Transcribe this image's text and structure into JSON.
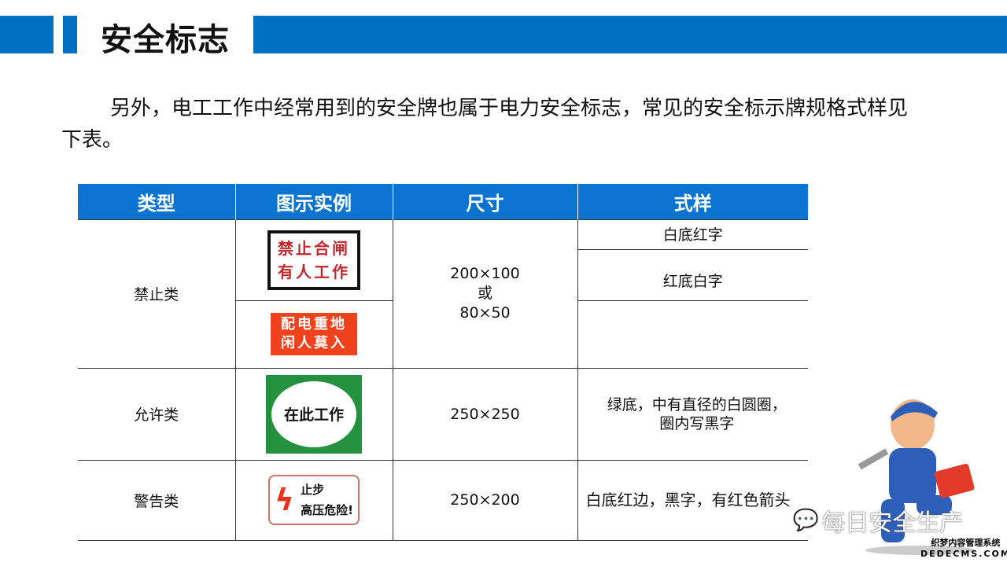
{
  "header": {
    "title": "安全标志"
  },
  "intro": "另外，电工工作中经常用到的安全牌也属于电力安全标志，常见的安全标示牌规格式样见下表。",
  "table": {
    "headers": [
      "类型",
      "图示实例",
      "尺寸",
      "式样"
    ],
    "rows": [
      {
        "type": "禁止类",
        "size_lines": [
          "200×100",
          "或",
          "80×50"
        ],
        "signs": [
          {
            "lines": [
              "禁止合闸",
              "有人工作"
            ],
            "style": "白底红字"
          },
          {
            "lines": [
              "配电重地",
              "闲人莫入"
            ],
            "style": "红底白字"
          }
        ]
      },
      {
        "type": "允许类",
        "size": "250×250",
        "sign": "在此工作",
        "style": "绿底，中有直径的白圆圈，圈内写黑字"
      },
      {
        "type": "警告类",
        "size": "250×200",
        "sign_lines": [
          "止步",
          "高压危险!"
        ],
        "style": "白底红边，黑字，有红色箭头"
      }
    ]
  },
  "brand": "每日安全生产",
  "watermark": [
    "织梦内容管理系统",
    "DEDECMS.COM"
  ],
  "colors": {
    "accent": "#0070c0",
    "header": "#0b74d0"
  }
}
